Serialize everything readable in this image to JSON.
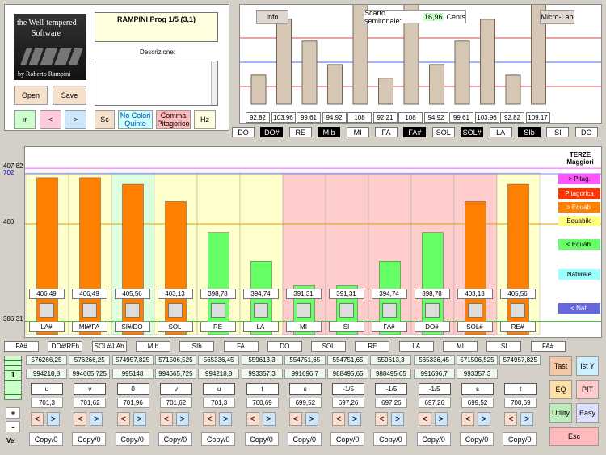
{
  "logo": {
    "line1": "the Well-tempered",
    "line2": "Software",
    "line3": "by Roberto Rampini"
  },
  "file_buttons": {
    "open": "Open",
    "save": "Save"
  },
  "prog_title": "RAMPINI Prog 1/5 (3,1)",
  "description_label": "Descrizione:",
  "mode_buttons": {
    "ir": "ır",
    "left": "<",
    "right": ">",
    "sc": "Sc",
    "no_color": "No Colori Quinte",
    "comma": "Comma Pitagorico",
    "hz": "Hz"
  },
  "top_chart": {
    "info_label": "Info",
    "deviation_label": "Scarto semitonale:",
    "deviation_value": "16,96",
    "deviation_unit": "Cents",
    "microlab_label": "Micro-Lab",
    "values": [
      92.82,
      103.96,
      99.61,
      94.92,
      108,
      92.21,
      108,
      94.92,
      99.61,
      103.96,
      92.82,
      109.17
    ],
    "value_labels": [
      "92,82",
      "103,96",
      "99,61",
      "94,92",
      "108",
      "92,21",
      "108",
      "94,92",
      "99,61",
      "103,96",
      "92,82",
      "109,17"
    ],
    "notes": [
      {
        "label": "DO",
        "black": false
      },
      {
        "label": "DO#",
        "black": true
      },
      {
        "label": "RE",
        "black": false
      },
      {
        "label": "MIb",
        "black": true
      },
      {
        "label": "MI",
        "black": false
      },
      {
        "label": "FA",
        "black": false
      },
      {
        "label": "FA#",
        "black": true
      },
      {
        "label": "SOL",
        "black": false
      },
      {
        "label": "SOL#",
        "black": true
      },
      {
        "label": "LA",
        "black": false
      },
      {
        "label": "SIb",
        "black": true
      },
      {
        "label": "SI",
        "black": false
      },
      {
        "label": "DO",
        "black": false
      }
    ]
  },
  "main_chart": {
    "y_labels": [
      "702",
      "407.82",
      "400",
      "386.31"
    ],
    "legend_title": "TERZE Maggiori",
    "legend": [
      {
        "label": "> Pitag.",
        "bg": "#ff55ff",
        "color": "#000"
      },
      {
        "label": "Pitagorica",
        "bg": "#ff3300",
        "color": "#fff"
      },
      {
        "label": "> Equab.",
        "bg": "#ff8000",
        "color": "#fff"
      },
      {
        "label": "Equabile",
        "bg": "#ffff80",
        "color": "#000"
      },
      {
        "label": "< Equab.",
        "bg": "#66ff66",
        "color": "#000"
      },
      {
        "label": "Naturale",
        "bg": "#99ffff",
        "color": "#000"
      },
      {
        "label": "< Nat.",
        "bg": "#6666dd",
        "color": "#fff"
      }
    ],
    "bars": [
      {
        "value": 406.49,
        "label": "406,49",
        "color": "#ff8000",
        "bg": "#ffffcc",
        "note": "LA#"
      },
      {
        "value": 406.49,
        "label": "406,49",
        "color": "#ff8000",
        "bg": "#ffffcc",
        "note": "MI#/FA"
      },
      {
        "value": 405.56,
        "label": "405,56",
        "color": "#ff8000",
        "bg": "#ddffdd",
        "note": "SI#/DO"
      },
      {
        "value": 403.13,
        "label": "403,13",
        "color": "#ff8000",
        "bg": "#ffffcc",
        "note": "SOL"
      },
      {
        "value": 398.78,
        "label": "398,78",
        "color": "#66ff66",
        "bg": "#ffffcc",
        "note": "RE"
      },
      {
        "value": 394.74,
        "label": "394,74",
        "color": "#66ff66",
        "bg": "#ffffcc",
        "note": "LA"
      },
      {
        "value": 391.31,
        "label": "391,31",
        "color": "#66ff66",
        "bg": "#ffcccc",
        "note": "MI"
      },
      {
        "value": 391.31,
        "label": "391,31",
        "color": "#66ff66",
        "bg": "#ffcccc",
        "note": "SI"
      },
      {
        "value": 394.74,
        "label": "394,74",
        "color": "#66ff66",
        "bg": "#ffcccc",
        "note": "FA#"
      },
      {
        "value": 398.78,
        "label": "398,78",
        "color": "#66ff66",
        "bg": "#ffcccc",
        "note": "DO#"
      },
      {
        "value": 403.13,
        "label": "403,13",
        "color": "#ff8000",
        "bg": "#ffcccc",
        "note": "SOL#"
      },
      {
        "value": 405.56,
        "label": "405,56",
        "color": "#ff8000",
        "bg": "#ffffcc",
        "note": "RE#"
      }
    ]
  },
  "fifth_notes": [
    "FA#",
    "DO#/REb",
    "SOL#/LAb",
    "MIb",
    "SIb",
    "FA",
    "DO",
    "SOL",
    "RE",
    "LA",
    "MI",
    "SI",
    "FA#"
  ],
  "row1": [
    "576266,25",
    "576266,25",
    "574957,825",
    "571506,525",
    "565336,45",
    "559613,3",
    "554751,65",
    "554751,65",
    "559613,3",
    "565336,45",
    "571506,525",
    "574957,825"
  ],
  "row2": [
    "994218,8",
    "994665,725",
    "995148",
    "994665,725",
    "994218,8",
    "993357,3",
    "991696,7",
    "988495,65",
    "988495,65",
    "991696,7",
    "993357,3"
  ],
  "fractions": [
    "u",
    "v",
    "0",
    "v",
    "u",
    "t",
    "s",
    "-1/5",
    "-1/5",
    "-1/5",
    "s",
    "t"
  ],
  "cents": [
    "701,3",
    "701,62",
    "701,96",
    "701,62",
    "701,3",
    "700,69",
    "699,52",
    "697,26",
    "697,26",
    "697,26",
    "699,52",
    "700,69"
  ],
  "copy_label": "Copy/0",
  "left_controls": {
    "counter": "1",
    "plus": "+",
    "minus": "-",
    "vel": "Vel"
  },
  "right_buttons": {
    "tast": "Tast",
    "isty": "Ist Y",
    "eq": "EQ",
    "pit": "PIT",
    "utility": "Utility",
    "easy": "Easy",
    "esc": "Esc"
  }
}
